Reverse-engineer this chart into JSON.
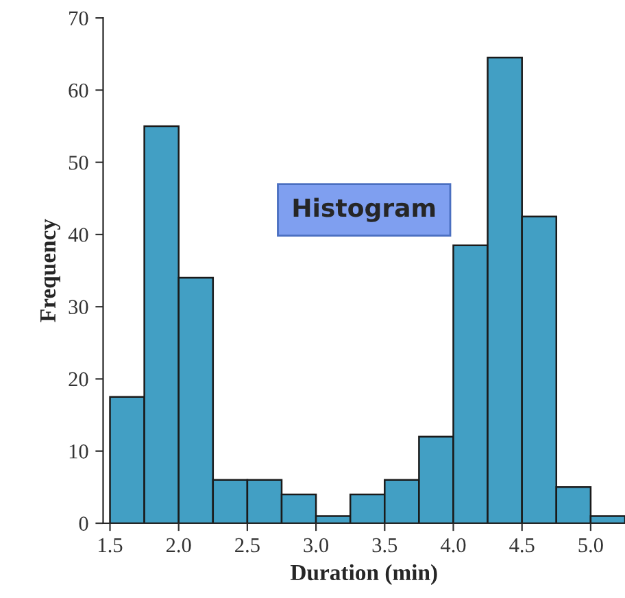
{
  "chart_data": {
    "type": "histogram",
    "bins": [
      1.5,
      1.75,
      2.0,
      2.25,
      2.5,
      2.75,
      3.0,
      3.25,
      3.5,
      3.75,
      4.0,
      4.25,
      4.5,
      4.75,
      5.0,
      5.25
    ],
    "values": [
      17.5,
      55,
      34,
      6,
      6,
      4,
      1,
      4,
      6,
      12,
      38.5,
      64.5,
      42.5,
      5,
      1
    ],
    "color": "#429fc4",
    "xlabel": "Duration (min)",
    "ylabel": "Frequency",
    "annotations": [
      "Histogram"
    ],
    "xlim": [
      1.45,
      5.25
    ],
    "xticks": [
      {
        "value": 1.5,
        "label": "1.5"
      },
      {
        "value": 2.0,
        "label": "2.0"
      },
      {
        "value": 2.5,
        "label": "2.5"
      },
      {
        "value": 3.0,
        "label": "3.0"
      },
      {
        "value": 3.5,
        "label": "3.5"
      },
      {
        "value": 4.0,
        "label": "4.0"
      },
      {
        "value": 4.5,
        "label": "4.5"
      },
      {
        "value": 5.0,
        "label": "5.0"
      }
    ],
    "ylim": [
      0,
      70
    ],
    "yticks": [
      0,
      10,
      20,
      30,
      40,
      50,
      60,
      70
    ],
    "grid": false
  }
}
